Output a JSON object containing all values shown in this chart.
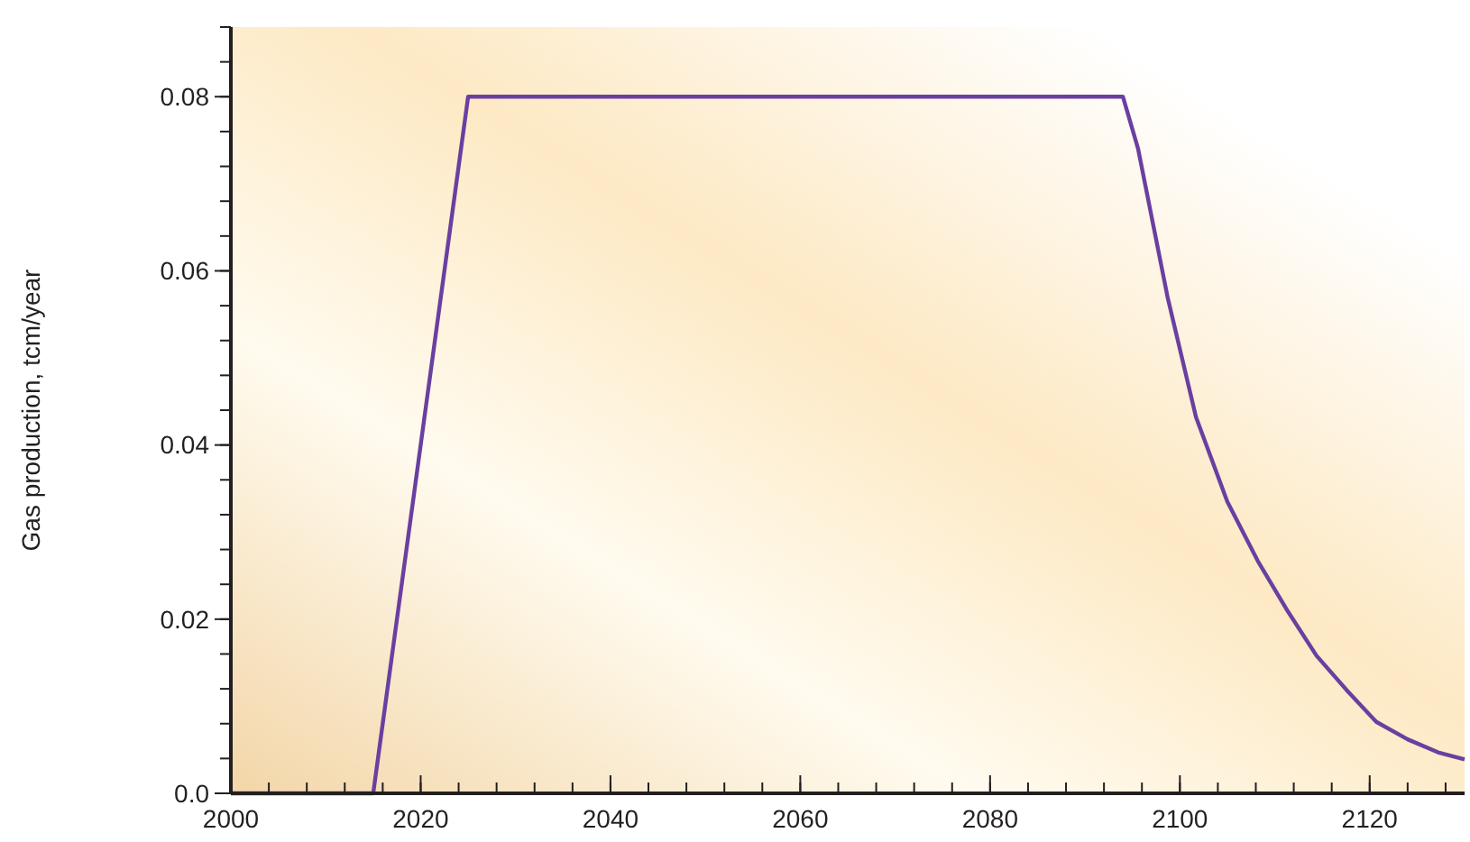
{
  "chart_data": {
    "type": "line",
    "ylabel": "Gas production, tcm/year",
    "x": [
      2000,
      2015,
      2025,
      2094,
      2095.6,
      2098.7,
      2101.7,
      2105,
      2108.2,
      2111.2,
      2114.4,
      2117.7,
      2120.7,
      2124,
      2127.2,
      2130
    ],
    "series": [
      {
        "color": "#6a3fa0",
        "values": [
          0,
          0,
          0.08,
          0.08,
          0.074,
          0.057,
          0.0432,
          0.0335,
          0.0267,
          0.0212,
          0.0158,
          0.0117,
          0.0082,
          0.0062,
          0.0047,
          0.0039
        ]
      }
    ],
    "xlim": [
      2000,
      2130
    ],
    "xticks": [
      2000,
      2020,
      2040,
      2060,
      2080,
      2100,
      2120
    ],
    "ylim": [
      0,
      0.088
    ],
    "yticks": [
      {
        "value": 0,
        "label": "0.0"
      },
      0.02,
      0.04,
      0.06,
      0.08
    ],
    "grid": false,
    "marker": "none",
    "line_style": "solid"
  }
}
